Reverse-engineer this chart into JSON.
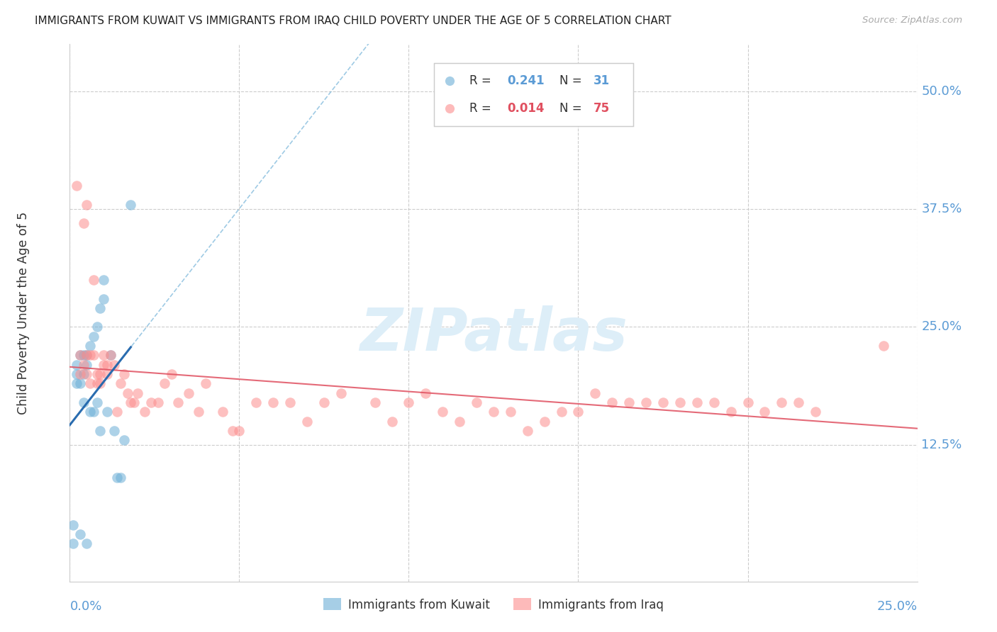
{
  "title": "IMMIGRANTS FROM KUWAIT VS IMMIGRANTS FROM IRAQ CHILD POVERTY UNDER THE AGE OF 5 CORRELATION CHART",
  "source": "Source: ZipAtlas.com",
  "ylabel": "Child Poverty Under the Age of 5",
  "ytick_labels": [
    "50.0%",
    "37.5%",
    "25.0%",
    "12.5%"
  ],
  "ytick_values": [
    0.5,
    0.375,
    0.25,
    0.125
  ],
  "xlim": [
    0.0,
    0.25
  ],
  "ylim": [
    -0.02,
    0.55
  ],
  "kuwait_color": "#6baed6",
  "iraq_color": "#fc8d8d",
  "background_color": "#ffffff",
  "grid_color": "#cccccc",
  "axis_label_color": "#5b9bd5",
  "watermark_color": "#ddeef8",
  "kuwait_x": [
    0.001,
    0.001,
    0.002,
    0.002,
    0.002,
    0.003,
    0.003,
    0.003,
    0.004,
    0.004,
    0.004,
    0.005,
    0.005,
    0.005,
    0.006,
    0.006,
    0.007,
    0.007,
    0.008,
    0.008,
    0.009,
    0.009,
    0.01,
    0.01,
    0.011,
    0.012,
    0.013,
    0.014,
    0.015,
    0.016,
    0.018
  ],
  "kuwait_y": [
    0.02,
    0.04,
    0.19,
    0.2,
    0.21,
    0.03,
    0.19,
    0.22,
    0.17,
    0.2,
    0.22,
    0.02,
    0.21,
    0.22,
    0.16,
    0.23,
    0.16,
    0.24,
    0.17,
    0.25,
    0.14,
    0.27,
    0.28,
    0.3,
    0.16,
    0.22,
    0.14,
    0.09,
    0.09,
    0.13,
    0.38
  ],
  "iraq_x": [
    0.002,
    0.003,
    0.003,
    0.004,
    0.004,
    0.005,
    0.005,
    0.005,
    0.006,
    0.006,
    0.007,
    0.007,
    0.008,
    0.008,
    0.009,
    0.009,
    0.01,
    0.01,
    0.011,
    0.011,
    0.012,
    0.013,
    0.014,
    0.015,
    0.016,
    0.017,
    0.018,
    0.019,
    0.02,
    0.022,
    0.024,
    0.026,
    0.028,
    0.03,
    0.032,
    0.035,
    0.038,
    0.04,
    0.045,
    0.048,
    0.05,
    0.055,
    0.06,
    0.065,
    0.07,
    0.075,
    0.08,
    0.09,
    0.095,
    0.1,
    0.105,
    0.11,
    0.115,
    0.12,
    0.125,
    0.13,
    0.135,
    0.14,
    0.145,
    0.15,
    0.155,
    0.16,
    0.165,
    0.17,
    0.175,
    0.18,
    0.185,
    0.19,
    0.195,
    0.2,
    0.205,
    0.21,
    0.215,
    0.22,
    0.24
  ],
  "iraq_y": [
    0.4,
    0.22,
    0.2,
    0.21,
    0.36,
    0.2,
    0.22,
    0.38,
    0.19,
    0.22,
    0.22,
    0.3,
    0.19,
    0.2,
    0.19,
    0.2,
    0.21,
    0.22,
    0.2,
    0.21,
    0.22,
    0.21,
    0.16,
    0.19,
    0.2,
    0.18,
    0.17,
    0.17,
    0.18,
    0.16,
    0.17,
    0.17,
    0.19,
    0.2,
    0.17,
    0.18,
    0.16,
    0.19,
    0.16,
    0.14,
    0.14,
    0.17,
    0.17,
    0.17,
    0.15,
    0.17,
    0.18,
    0.17,
    0.15,
    0.17,
    0.18,
    0.16,
    0.15,
    0.17,
    0.16,
    0.16,
    0.14,
    0.15,
    0.16,
    0.16,
    0.18,
    0.17,
    0.17,
    0.17,
    0.17,
    0.17,
    0.17,
    0.17,
    0.16,
    0.17,
    0.16,
    0.17,
    0.17,
    0.16,
    0.23
  ],
  "kuwait_trend_x": [
    0.0,
    0.25
  ],
  "iraq_trend_x": [
    0.0,
    0.25
  ],
  "kuwait_R": 0.241,
  "iraq_R": 0.014
}
